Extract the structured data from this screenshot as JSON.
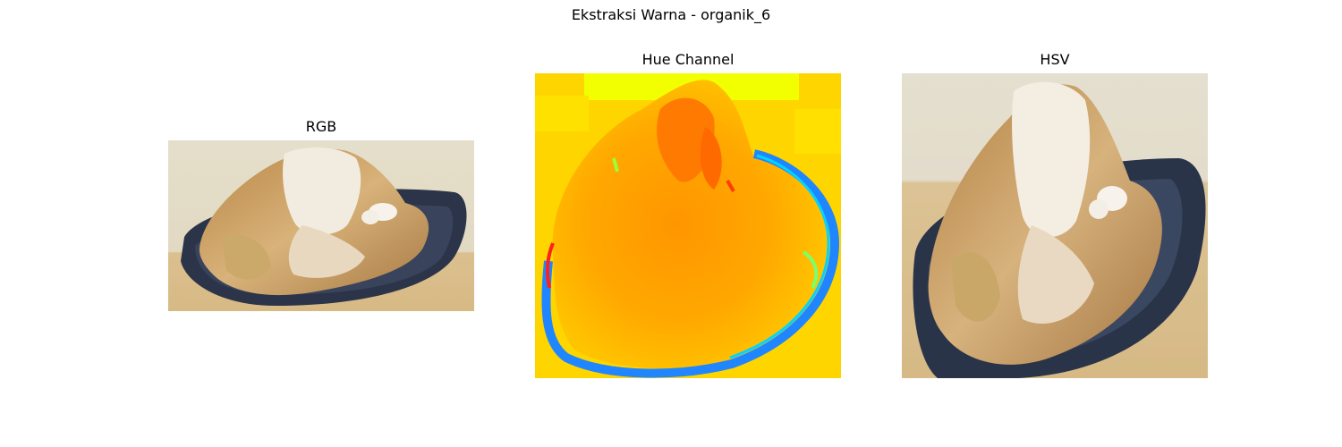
{
  "figure": {
    "suptitle": "Ekstraksi Warna - organik_6"
  },
  "panels": [
    {
      "title": "RGB",
      "image": "cooked-meat-in-dark-bowl-photo"
    },
    {
      "title": "Hue Channel",
      "image": "hue-channel-jet-colormap"
    },
    {
      "title": "HSV",
      "image": "cooked-meat-in-dark-bowl-photo-square"
    }
  ],
  "colors": {
    "background": "#e3dfcf",
    "table": "#d8c090",
    "bowl": "#2a3348",
    "meat": "#c79a5a",
    "bone": "#f1ebdf",
    "hue_bg": "#ffd400",
    "hue_orange": "#ff9a00",
    "hue_blue": "#1e88ff"
  }
}
